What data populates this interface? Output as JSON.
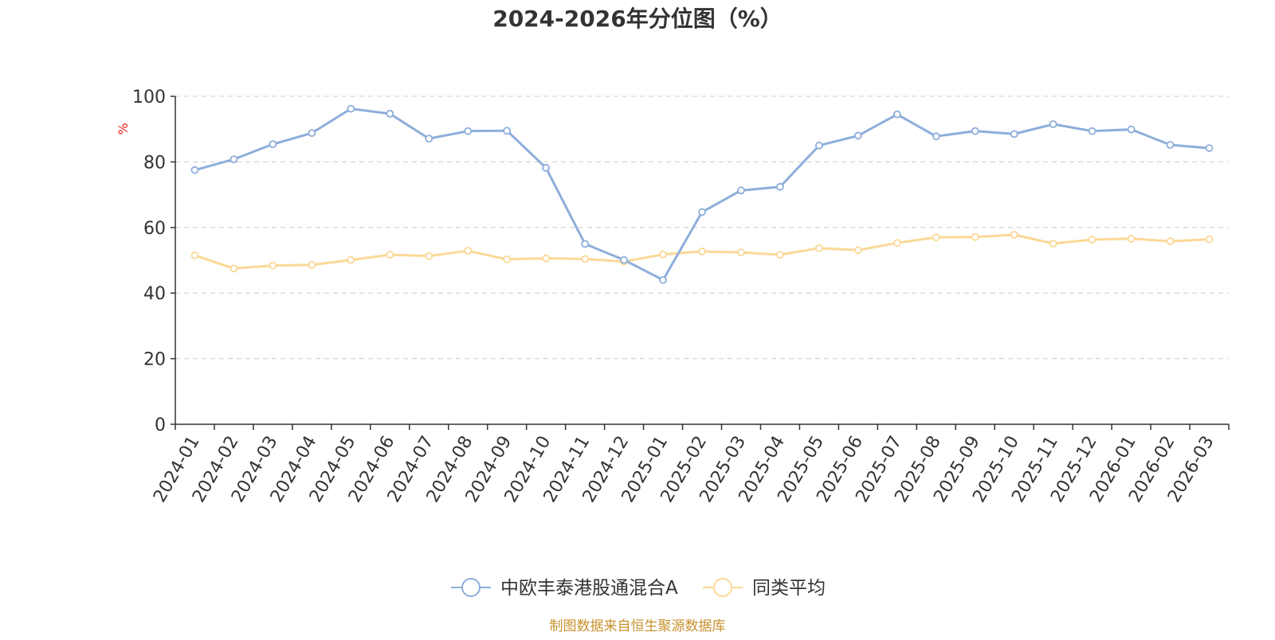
{
  "chart_data": {
    "type": "line",
    "title": "2024-2026年分位图（%）",
    "ylabel": "%",
    "xlabel": "",
    "ylim": [
      0,
      100
    ],
    "yticks": [
      0,
      20,
      40,
      60,
      80,
      100
    ],
    "grid": true,
    "legend_position": "bottom",
    "categories": [
      "2024-01",
      "2024-02",
      "2024-03",
      "2024-04",
      "2024-05",
      "2024-06",
      "2024-07",
      "2024-08",
      "2024-09",
      "2024-10",
      "2024-11",
      "2024-12",
      "2025-01",
      "2025-02",
      "2025-03",
      "2025-04",
      "2025-05",
      "2025-06",
      "2025-07",
      "2025-08",
      "2025-09",
      "2025-10",
      "2025-11",
      "2025-12",
      "2026-01",
      "2026-02",
      "2026-03"
    ],
    "series": [
      {
        "name": "中欧丰泰港股通混合A",
        "color": "#8eaedb",
        "values": [
          77.5,
          80.8,
          85.4,
          88.8,
          96.2,
          94.7,
          87.1,
          89.4,
          89.5,
          78.2,
          55.0,
          50.1,
          44.0,
          64.7,
          71.3,
          72.4,
          85.0,
          88.0,
          94.5,
          87.8,
          89.4,
          88.5,
          91.5,
          89.4,
          89.9,
          85.2,
          84.2
        ]
      },
      {
        "name": "同类平均",
        "color": "#fbd896",
        "values": [
          51.5,
          47.5,
          48.4,
          48.6,
          50.1,
          51.7,
          51.3,
          52.9,
          50.3,
          50.6,
          50.4,
          49.6,
          51.8,
          52.7,
          52.4,
          51.7,
          53.7,
          53.1,
          55.3,
          57.0,
          57.1,
          57.8,
          55.1,
          56.3,
          56.6,
          55.8,
          56.4
        ]
      }
    ]
  },
  "footer": {
    "source": "制图数据来自恒生聚源数据库"
  }
}
